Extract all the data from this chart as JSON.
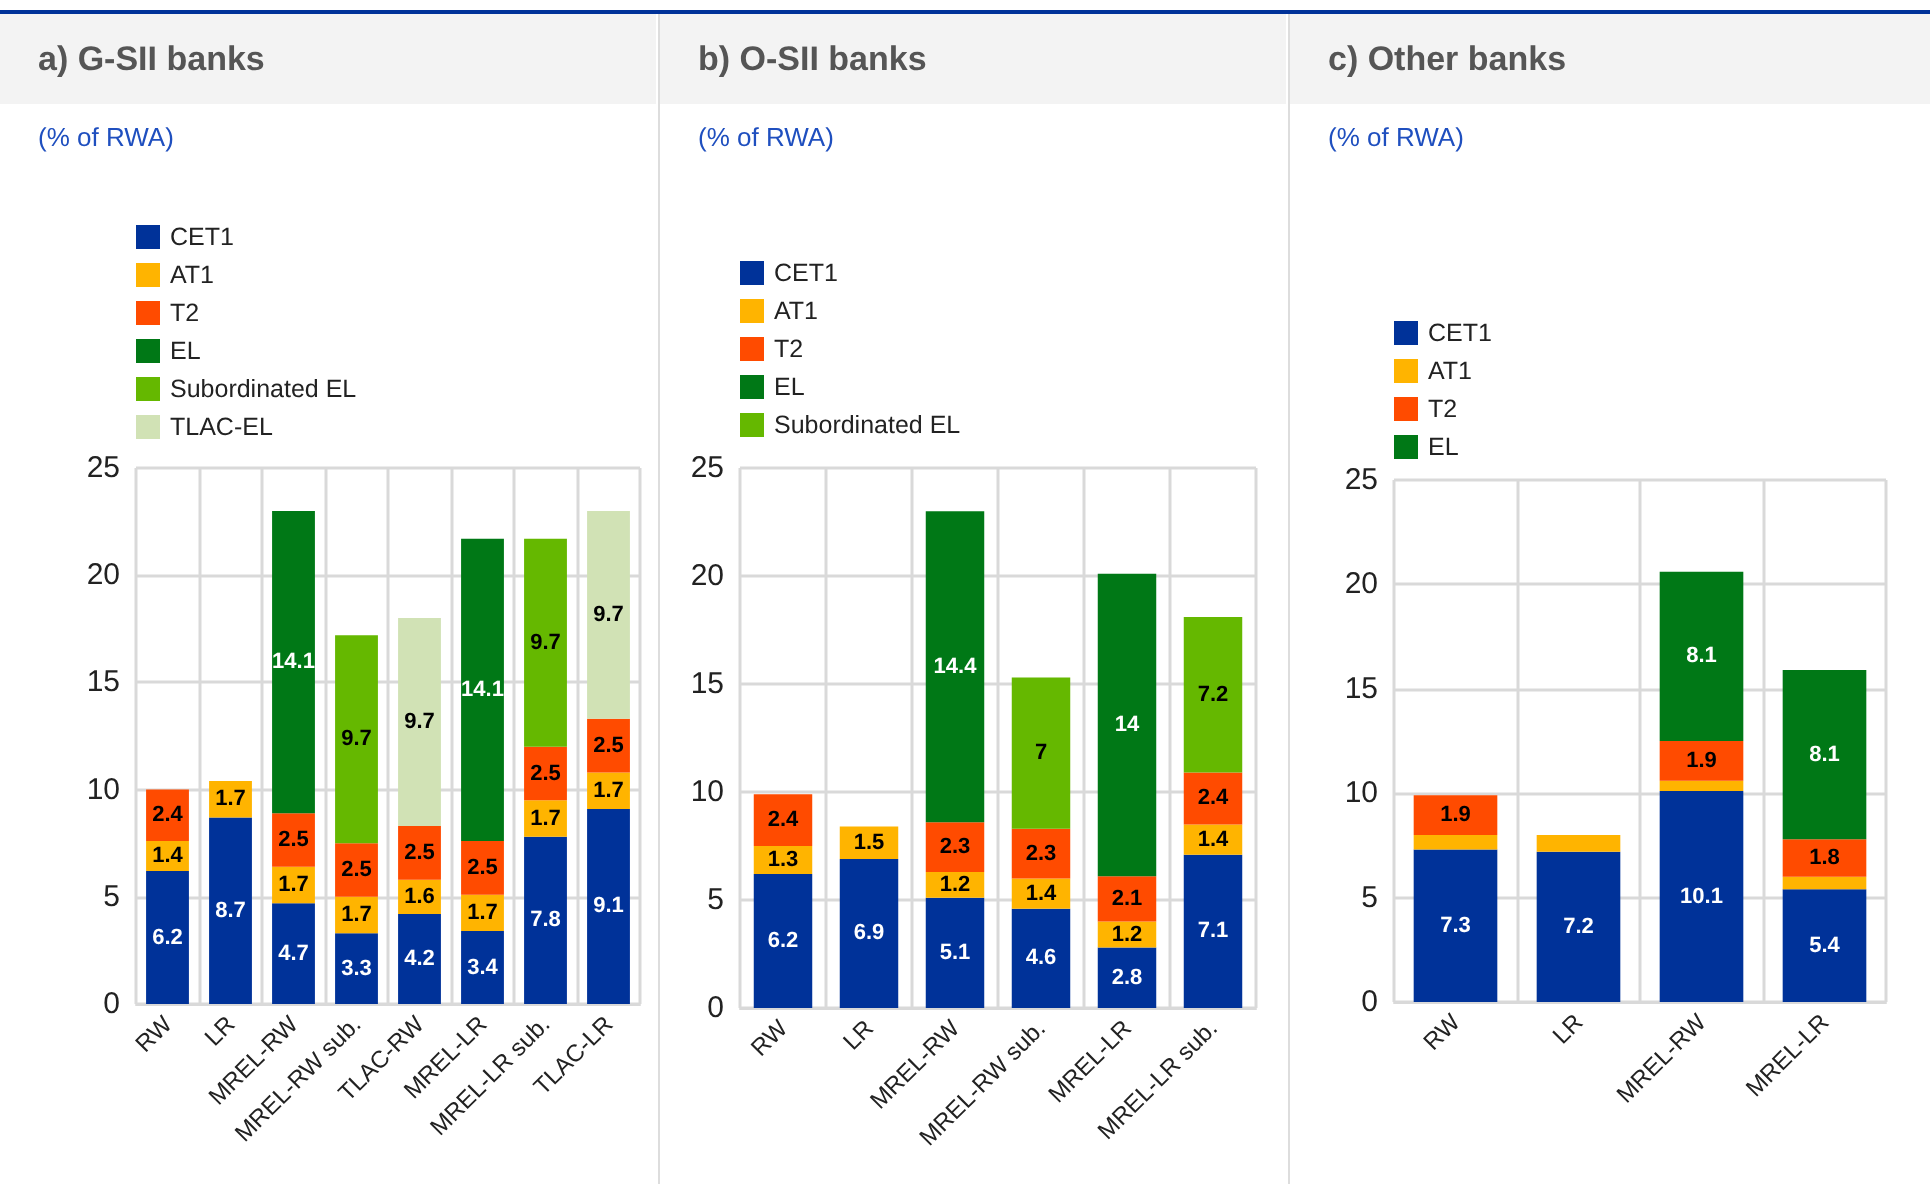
{
  "chart_data": [
    {
      "type": "bar",
      "title": "a) G-SII banks",
      "subtitle": "(% of RWA)",
      "categories": [
        "RW",
        "LR",
        "MREL-RW",
        "MREL-RW sub.",
        "TLAC-RW",
        "MREL-LR",
        "MREL-LR sub.",
        "TLAC-LR"
      ],
      "stacked": true,
      "ylim": [
        0,
        25
      ],
      "yticks": [
        0,
        5,
        10,
        15,
        20,
        25
      ],
      "grid": true,
      "legend": "top left",
      "series": [
        {
          "name": "CET1",
          "color": "#003299",
          "values": [
            6.2,
            8.7,
            4.7,
            3.3,
            4.2,
            3.4,
            7.8,
            9.1
          ],
          "value_labels": [
            "6.2",
            "8.7",
            "4.7",
            "3.3",
            "4.2",
            "3.4",
            "7.8",
            "9.1"
          ]
        },
        {
          "name": "AT1",
          "color": "#ffb400",
          "values": [
            1.4,
            1.7,
            1.7,
            1.7,
            1.6,
            1.7,
            1.7,
            1.7
          ],
          "value_labels": [
            "1.4",
            "1.7",
            "1.7",
            "1.7",
            "1.6",
            "1.7",
            "1.7",
            "1.7"
          ]
        },
        {
          "name": "T2",
          "color": "#ff4b00",
          "values": [
            2.4,
            null,
            2.5,
            2.5,
            2.5,
            2.5,
            2.5,
            2.5
          ],
          "value_labels": [
            "2.4",
            null,
            "2.5",
            "2.5",
            "2.5",
            "2.5",
            "2.5",
            "2.5"
          ]
        },
        {
          "name": "EL",
          "color": "#007816",
          "values": [
            null,
            null,
            14.1,
            null,
            null,
            14.1,
            null,
            null
          ],
          "value_labels": [
            null,
            null,
            "14.1",
            null,
            null,
            "14.1",
            null,
            null
          ]
        },
        {
          "name": "Subordinated EL",
          "color": "#65b800",
          "values": [
            null,
            null,
            null,
            9.7,
            null,
            null,
            9.7,
            null
          ],
          "value_labels": [
            null,
            null,
            null,
            "9.7",
            null,
            null,
            "9.7",
            null
          ]
        },
        {
          "name": "TLAC-EL",
          "color": "#d1e2b5",
          "values": [
            null,
            null,
            null,
            null,
            9.7,
            null,
            null,
            9.7
          ],
          "value_labels": [
            null,
            null,
            null,
            null,
            "9.7",
            null,
            null,
            "9.7"
          ]
        }
      ]
    },
    {
      "type": "bar",
      "title": "b) O-SII banks",
      "subtitle": "(% of RWA)",
      "categories": [
        "RW",
        "LR",
        "MREL-RW",
        "MREL-RW sub.",
        "MREL-LR",
        "MREL-LR sub."
      ],
      "stacked": true,
      "ylim": [
        0,
        25
      ],
      "yticks": [
        0,
        5,
        10,
        15,
        20,
        25
      ],
      "grid": true,
      "legend": "top left",
      "series": [
        {
          "name": "CET1",
          "color": "#003299",
          "values": [
            6.2,
            6.9,
            5.1,
            4.6,
            2.8,
            7.1
          ],
          "value_labels": [
            "6.2",
            "6.9",
            "5.1",
            "4.6",
            "2.8",
            "7.1"
          ]
        },
        {
          "name": "AT1",
          "color": "#ffb400",
          "values": [
            1.3,
            1.5,
            1.2,
            1.4,
            1.2,
            1.4
          ],
          "value_labels": [
            "1.3",
            "1.5",
            "1.2",
            "1.4",
            "1.2",
            "1.4"
          ]
        },
        {
          "name": "T2",
          "color": "#ff4b00",
          "values": [
            2.4,
            null,
            2.3,
            2.3,
            2.1,
            2.4
          ],
          "value_labels": [
            "2.4",
            null,
            "2.3",
            "2.3",
            "2.1",
            "2.4"
          ]
        },
        {
          "name": "EL",
          "color": "#007816",
          "values": [
            null,
            null,
            14.4,
            null,
            14,
            null
          ],
          "value_labels": [
            null,
            null,
            "14.4",
            null,
            "14",
            null
          ]
        },
        {
          "name": "Subordinated EL",
          "color": "#65b800",
          "values": [
            null,
            null,
            null,
            7,
            null,
            7.2
          ],
          "value_labels": [
            null,
            null,
            null,
            "7",
            null,
            "7.2"
          ]
        }
      ]
    },
    {
      "type": "bar",
      "title": "c) Other banks",
      "subtitle": "(% of RWA)",
      "categories": [
        "RW",
        "LR",
        "MREL-RW",
        "MREL-LR"
      ],
      "stacked": true,
      "ylim": [
        0,
        25
      ],
      "yticks": [
        0,
        5,
        10,
        15,
        20,
        25
      ],
      "grid": true,
      "legend": "top left",
      "series": [
        {
          "name": "CET1",
          "color": "#003299",
          "values": [
            7.3,
            7.2,
            10.1,
            5.4
          ],
          "value_labels": [
            "7.3",
            "7.2",
            "10.1",
            "5.4"
          ]
        },
        {
          "name": "AT1",
          "color": "#ffb400",
          "values": [
            0.7,
            0.8,
            0.5,
            0.6
          ],
          "value_labels": [
            null,
            null,
            null,
            null
          ]
        },
        {
          "name": "T2",
          "color": "#ff4b00",
          "values": [
            1.9,
            null,
            1.9,
            1.8
          ],
          "value_labels": [
            "1.9",
            null,
            "1.9",
            "1.8"
          ]
        },
        {
          "name": "EL",
          "color": "#007816",
          "values": [
            null,
            null,
            8.1,
            8.1
          ],
          "value_labels": [
            null,
            null,
            "8.1",
            "8.1"
          ]
        }
      ]
    }
  ]
}
